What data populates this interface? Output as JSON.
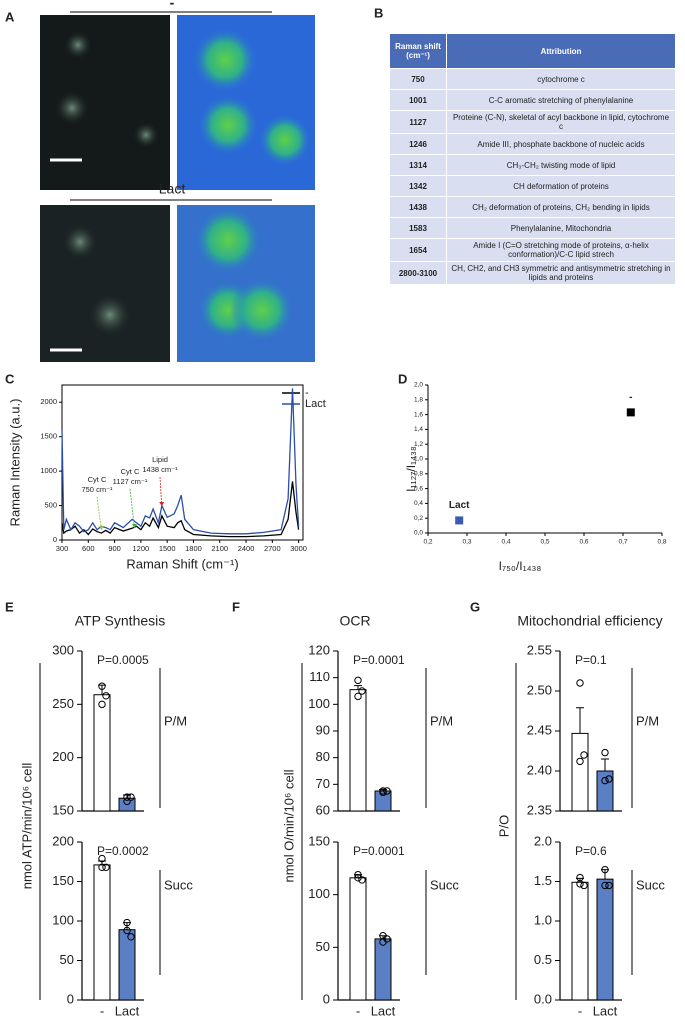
{
  "panel_labels": [
    "A",
    "B",
    "C",
    "D",
    "E",
    "F",
    "G"
  ],
  "panel_a": {
    "labels": [
      "-",
      "Lact"
    ]
  },
  "table": {
    "header": [
      "Raman shift (cm⁻¹)",
      "Attribution"
    ],
    "rows": [
      [
        "750",
        "cytochrome c"
      ],
      [
        "1001",
        "C-C aromatic stretching of phenylalanine"
      ],
      [
        "1127",
        "Proteine (C-N), skeletal of acyl backbone in lipid, cytochrome c"
      ],
      [
        "1246",
        "Amide III, phosphate backbone of nucleic acids"
      ],
      [
        "1314",
        "CH₃-CH₂ twisting mode of lipid"
      ],
      [
        "1342",
        "CH deformation of proteins"
      ],
      [
        "1438",
        "CH₂ deformation of proteins, CH₂ bending in lipids"
      ],
      [
        "1583",
        "Phenylalanine, Mitochondria"
      ],
      [
        "1654",
        "Amide I (C=O stretching mode of proteins, α-helix conformation)/C-C lipid strech"
      ],
      [
        "2800-3100",
        "CH, CH2, and CH3 symmetric and antisymmetric stretching in lipids and proteins"
      ]
    ]
  },
  "chart_data": [
    {
      "type": "line",
      "xlabel": "Raman Shift  (cm⁻¹)",
      "ylabel": "Raman Intensity (a.u.)",
      "x": [
        300,
        320,
        350,
        400,
        450,
        500,
        550,
        600,
        650,
        700,
        750,
        800,
        850,
        900,
        1000,
        1100,
        1150,
        1200,
        1250,
        1300,
        1340,
        1400,
        1440,
        1500,
        1580,
        1620,
        1660,
        1700,
        1800,
        2000,
        2200,
        2400,
        2600,
        2800,
        2880,
        2930,
        2970,
        3000
      ],
      "series": [
        {
          "name": "-",
          "color": "#000000",
          "values": [
            250,
            100,
            130,
            150,
            200,
            100,
            150,
            80,
            160,
            120,
            100,
            140,
            100,
            180,
            130,
            170,
            200,
            150,
            250,
            200,
            320,
            180,
            350,
            200,
            180,
            250,
            280,
            150,
            80,
            60,
            50,
            50,
            60,
            80,
            300,
            850,
            400,
            150
          ]
        },
        {
          "name": "Lact",
          "color": "#2b4ea8",
          "values": [
            1600,
            150,
            300,
            150,
            250,
            200,
            120,
            150,
            250,
            150,
            200,
            180,
            150,
            250,
            180,
            300,
            250,
            200,
            350,
            320,
            450,
            250,
            500,
            330,
            380,
            500,
            650,
            300,
            150,
            100,
            90,
            90,
            110,
            150,
            600,
            2200,
            800,
            200
          ]
        }
      ],
      "xlim": [
        300,
        3050
      ],
      "xticks": [
        300,
        600,
        900,
        1200,
        1500,
        1800,
        2100,
        2400,
        2700,
        3000
      ],
      "ylim": [
        0,
        2250
      ],
      "yticks": [
        0,
        500,
        1000,
        1500,
        2000
      ],
      "annotations": [
        {
          "lines": [
            "Cyt C",
            "750 cm⁻¹"
          ],
          "x": 750,
          "color": "#8fc34a"
        },
        {
          "lines": [
            "Cyt C",
            "1127 cm⁻¹"
          ],
          "x": 1127,
          "color": "#3cb043"
        },
        {
          "lines": [
            "Lipid",
            "1438 cm⁻¹"
          ],
          "x": 1438,
          "color": "#e02020"
        }
      ]
    },
    {
      "type": "scatter",
      "xlabel": "I₇₅₀/I₁₄₃₈",
      "ylabel": "I₁₁₂₇/I₁₄₃₈",
      "series": [
        {
          "name": "-",
          "color": "#000000",
          "x": [
            0.72
          ],
          "values": [
            1.63
          ]
        },
        {
          "name": "Lact",
          "color": "#3a5bb0",
          "x": [
            0.28
          ],
          "values": [
            0.17
          ]
        }
      ],
      "xlim": [
        0.2,
        0.8
      ],
      "xticks": [
        {
          "value": 0.2,
          "label": "0,2"
        },
        {
          "value": 0.3,
          "label": "0,3"
        },
        {
          "value": 0.4,
          "label": "0,4"
        },
        {
          "value": 0.5,
          "label": "0,5"
        },
        {
          "value": 0.6,
          "label": "0,6"
        },
        {
          "value": 0.7,
          "label": "0,7"
        },
        {
          "value": 0.8,
          "label": "0,8"
        }
      ],
      "ylim": [
        0,
        2
      ],
      "yticks": [
        {
          "value": 0,
          "label": "0,0"
        },
        {
          "value": 0.2,
          "label": "0,2"
        },
        {
          "value": 0.4,
          "label": "0,4"
        },
        {
          "value": 0.6,
          "label": "0,6"
        },
        {
          "value": 0.8,
          "label": "0,8"
        },
        {
          "value": 1,
          "label": "1,0"
        },
        {
          "value": 1.2,
          "label": "1,2"
        },
        {
          "value": 1.4,
          "label": "1,4"
        },
        {
          "value": 1.6,
          "label": "1,6"
        },
        {
          "value": 1.8,
          "label": "1,8"
        },
        {
          "value": 2,
          "label": "2,0"
        }
      ]
    },
    {
      "type": "bar",
      "title": "ATP Synthesis",
      "ylabel": "nmol ATP/min/10⁶ cell",
      "categories": [
        "-",
        "Lact"
      ],
      "colors": [
        "#ffffff",
        "#5b7fc4"
      ],
      "panels": [
        {
          "label": "P/M",
          "annotation": "P=0.0005",
          "ylim": [
            150,
            300
          ],
          "yticks": [
            150,
            200,
            250,
            300
          ],
          "values": [
            259,
            162
          ],
          "errors": [
            9,
            3
          ],
          "points": [
            [
              250,
              267,
              258
            ],
            [
              159,
              163,
              163
            ]
          ]
        },
        {
          "label": "Succ",
          "annotation": "P=0.0002",
          "ylim": [
            0,
            200
          ],
          "yticks": [
            0,
            50,
            100,
            150,
            200
          ],
          "values": [
            171,
            89
          ],
          "errors": [
            5,
            9
          ],
          "points": [
            [
              168,
              179,
              168
            ],
            [
              88,
              98,
              80
            ]
          ]
        }
      ]
    },
    {
      "type": "bar",
      "title": "OCR",
      "ylabel": "nmol O/min/10⁶ cell",
      "categories": [
        "-",
        "Lact"
      ],
      "colors": [
        "#ffffff",
        "#5b7fc4"
      ],
      "panels": [
        {
          "label": "P/M",
          "annotation": "P=0.0001",
          "ylim": [
            60,
            120
          ],
          "yticks": [
            60,
            70,
            80,
            90,
            100,
            110,
            120
          ],
          "values": [
            105.5,
            67.5
          ],
          "errors": [
            1.5,
            0.5
          ],
          "points": [
            [
              103,
              109,
              105
            ],
            [
              67,
              67.5,
              67.5
            ]
          ]
        },
        {
          "label": "Succ",
          "annotation": "P=0.0001",
          "ylim": [
            0,
            150
          ],
          "yticks": [
            0,
            50,
            100,
            150
          ],
          "values": [
            116,
            58
          ],
          "errors": [
            3,
            3
          ],
          "points": [
            [
              116,
              119,
              114
            ],
            [
              55,
              61,
              58
            ]
          ]
        }
      ]
    },
    {
      "type": "bar",
      "title": "Mitochondrial efficiency",
      "ylabel": "P/O",
      "categories": [
        "-",
        "Lact"
      ],
      "colors": [
        "#ffffff",
        "#5b7fc4"
      ],
      "panels": [
        {
          "label": "P/M",
          "annotation": "P=0.1",
          "ylim": [
            2.35,
            2.55
          ],
          "yticks": [
            2.35,
            {
              "value": 2.4,
              "label": "2.40"
            },
            2.45,
            {
              "value": 2.5,
              "label": "2.50"
            },
            2.55
          ],
          "values": [
            2.447,
            2.4
          ],
          "errors": [
            0.032,
            0.015
          ],
          "points": [
            [
              2.412,
              2.51,
              2.42
            ],
            [
              2.388,
              2.423,
              2.39
            ]
          ]
        },
        {
          "label": "Succ",
          "annotation": "P=0.6",
          "ylim": [
            0,
            2
          ],
          "yticks": [
            {
              "value": 0,
              "label": "0.0"
            },
            {
              "value": 0.5,
              "label": "0.5"
            },
            {
              "value": 1,
              "label": "1.0"
            },
            {
              "value": 1.5,
              "label": "1.5"
            },
            {
              "value": 2,
              "label": "2.0"
            }
          ],
          "values": [
            1.49,
            1.53
          ],
          "errors": [
            0.05,
            0.12
          ],
          "points": [
            [
              1.47,
              1.55,
              1.45
            ],
            [
              1.45,
              1.65,
              1.45
            ]
          ]
        }
      ]
    }
  ]
}
